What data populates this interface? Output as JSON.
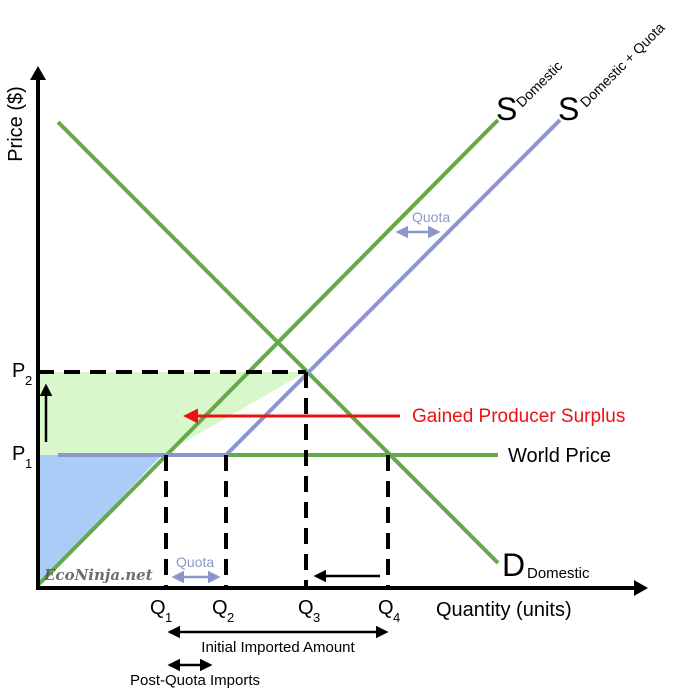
{
  "axes": {
    "y_label": "Price ($)",
    "x_label": "Quantity (units)"
  },
  "prices": [
    {
      "main": "P",
      "sub": "2"
    },
    {
      "main": "P",
      "sub": "1"
    }
  ],
  "quantities": [
    {
      "main": "Q",
      "sub": "1"
    },
    {
      "main": "Q",
      "sub": "2"
    },
    {
      "main": "Q",
      "sub": "3"
    },
    {
      "main": "Q",
      "sub": "4"
    }
  ],
  "curves": {
    "supply_domestic": {
      "main": "S",
      "sub": "Domestic"
    },
    "supply_quota": {
      "main": "S",
      "sub": "Domestic + Quota"
    },
    "demand": {
      "main": "D",
      "sub": "Domestic"
    },
    "world_price": "World Price"
  },
  "annotations": {
    "quota_upper": "Quota",
    "quota_lower": "Quota",
    "gained_producer_surplus": "Gained Producer Surplus",
    "initial_imported_amount": "Initial Imported Amount",
    "post_quota_imports": "Post-Quota Imports",
    "watermark": "EcoNinja.net"
  },
  "colors": {
    "supply_domestic": "#66a84a",
    "supply_quota": "#8c96cc",
    "demand": "#66a84a",
    "world_price": "#66a84a",
    "producer_surplus_gain": "#d8f8cc",
    "domestic_producer_surplus": "#a9cdf6",
    "arrow_red": "#ee1111"
  }
}
